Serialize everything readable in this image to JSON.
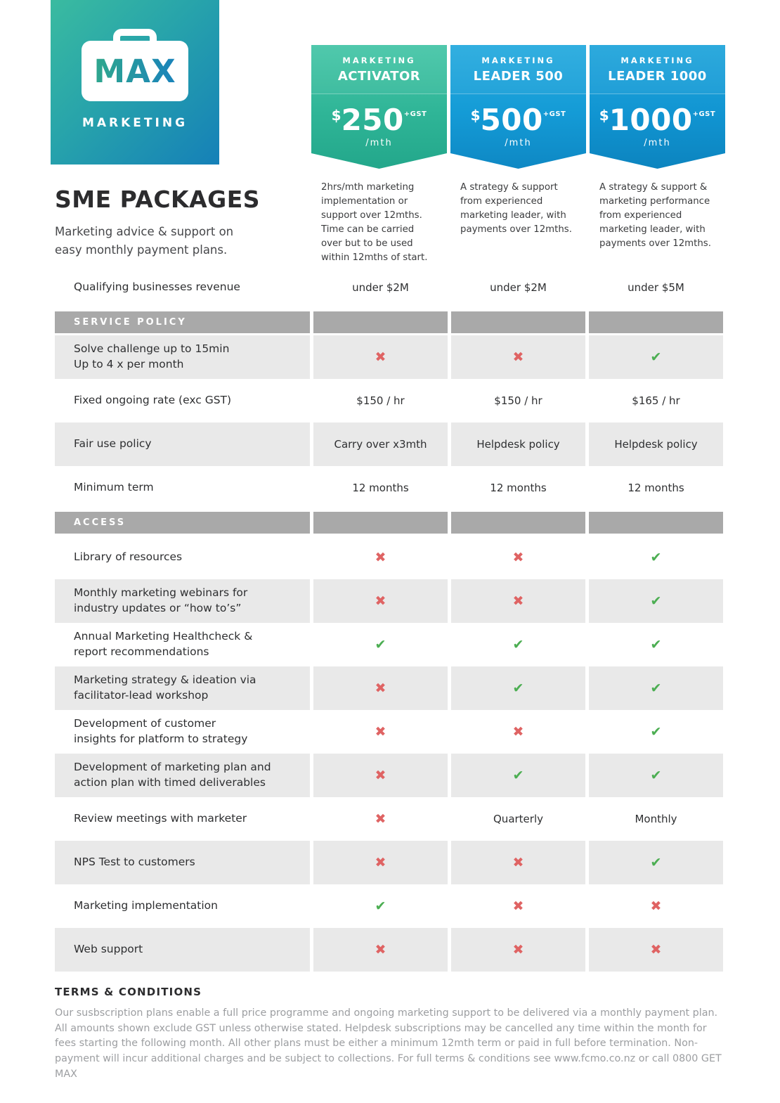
{
  "logo": {
    "brand": "MAX",
    "brand_sub": "MARKETING"
  },
  "header": {
    "title": "SME PACKAGES",
    "subtitle": "Marketing advice & support on\neasy monthly payment plans."
  },
  "plans": [
    {
      "eyebrow": "MARKETING",
      "name": "ACTIVATOR",
      "currency": "$",
      "price": "250",
      "gst": "+GST",
      "per": "/mth",
      "description": "2hrs/mth marketing implementation or support over 12mths. Time can be carried over but to be used within 12mths of start.",
      "theme": "green"
    },
    {
      "eyebrow": "MARKETING",
      "name": "LEADER 500",
      "currency": "$",
      "price": "500",
      "gst": "+GST",
      "per": "/mth",
      "description": "A strategy & support from experienced marketing leader, with payments over 12mths.",
      "theme": "blue"
    },
    {
      "eyebrow": "MARKETING",
      "name": "LEADER 1000",
      "currency": "$",
      "price": "1000",
      "gst": "+GST",
      "per": "/mth",
      "description": "A strategy & support & marketing performance from experienced marketing leader, with payments over 12mths.",
      "theme": "blue2"
    }
  ],
  "table": {
    "rows": [
      {
        "type": "value",
        "label": "Qualifying businesses  revenue",
        "values": [
          "under $2M",
          "under $2M",
          "under $5M"
        ],
        "shaded": false
      },
      {
        "type": "section",
        "label": "SERVICE POLICY"
      },
      {
        "type": "value",
        "label": "Solve challenge up to 15min\nUp to 4 x per month",
        "values": [
          "x",
          "x",
          "check"
        ],
        "shaded": true
      },
      {
        "type": "value",
        "label": "Fixed ongoing rate (exc GST)",
        "values": [
          "$150 / hr",
          "$150 / hr",
          "$165 / hr"
        ],
        "shaded": false
      },
      {
        "type": "value",
        "label": "Fair use policy",
        "values": [
          "Carry over x3mth",
          "Helpdesk policy",
          "Helpdesk policy"
        ],
        "shaded": true
      },
      {
        "type": "value",
        "label": "Minimum term",
        "values": [
          "12 months",
          "12 months",
          "12 months"
        ],
        "shaded": false
      },
      {
        "type": "section",
        "label": "ACCESS"
      },
      {
        "type": "value",
        "label": "Library of resources",
        "values": [
          "x",
          "x",
          "check"
        ],
        "shaded": false
      },
      {
        "type": "value",
        "label": "Monthly marketing webinars for\nindustry updates or “how to’s”",
        "values": [
          "x",
          "x",
          "check"
        ],
        "shaded": true
      },
      {
        "type": "value",
        "label": "Annual Marketing Healthcheck &\nreport recommendations",
        "values": [
          "check",
          "check",
          "check"
        ],
        "shaded": false
      },
      {
        "type": "value",
        "label": "Marketing strategy & ideation via\nfacilitator-lead workshop",
        "values": [
          "x",
          "check",
          "check"
        ],
        "shaded": true
      },
      {
        "type": "value",
        "label": "Development of customer\ninsights for platform to strategy",
        "values": [
          "x",
          "x",
          "check"
        ],
        "shaded": false
      },
      {
        "type": "value",
        "label": "Development of marketing plan and\naction plan with timed deliverables",
        "values": [
          "x",
          "check",
          "check"
        ],
        "shaded": true
      },
      {
        "type": "value",
        "label": "Review meetings with marketer",
        "values": [
          "x",
          "Quarterly",
          "Monthly"
        ],
        "shaded": false
      },
      {
        "type": "value",
        "label": "NPS Test to customers",
        "values": [
          "x",
          "x",
          "check"
        ],
        "shaded": true
      },
      {
        "type": "value",
        "label": "Marketing implementation",
        "values": [
          "check",
          "x",
          "x"
        ],
        "shaded": false
      },
      {
        "type": "value",
        "label": "Web support",
        "values": [
          "x",
          "x",
          "x"
        ],
        "shaded": true
      }
    ]
  },
  "icons": {
    "x_glyph": "✖",
    "check_glyph": "✔",
    "briefcase_icon": "briefcase"
  },
  "terms": {
    "heading": "TERMS & CONDITIONS",
    "body": "Our susbscription plans enable a full price programme and ongoing marketing support to be delivered via a monthly payment plan. All amounts shown exclude GST unless otherwise stated.  Helpdesk subscriptions may be cancelled any time within the month for fees starting the following month.  All other plans must be either a minimum 12mth term or paid in full before termination. Non-payment will incur additional charges and be subject to collections. For full terms & conditions see www.fcmo.co.nz or call 0800 GET MAX"
  },
  "colors": {
    "green_accent": "#2fb597",
    "blue_accent": "#149bd6",
    "logo_gradient_start": "#3abba0",
    "logo_gradient_end": "#1580b8",
    "section_bar_gray": "#a9a9a9",
    "row_stripe_gray": "#e9e9e9",
    "x_icon_red": "#df6363",
    "check_icon_green": "#4cae52"
  }
}
